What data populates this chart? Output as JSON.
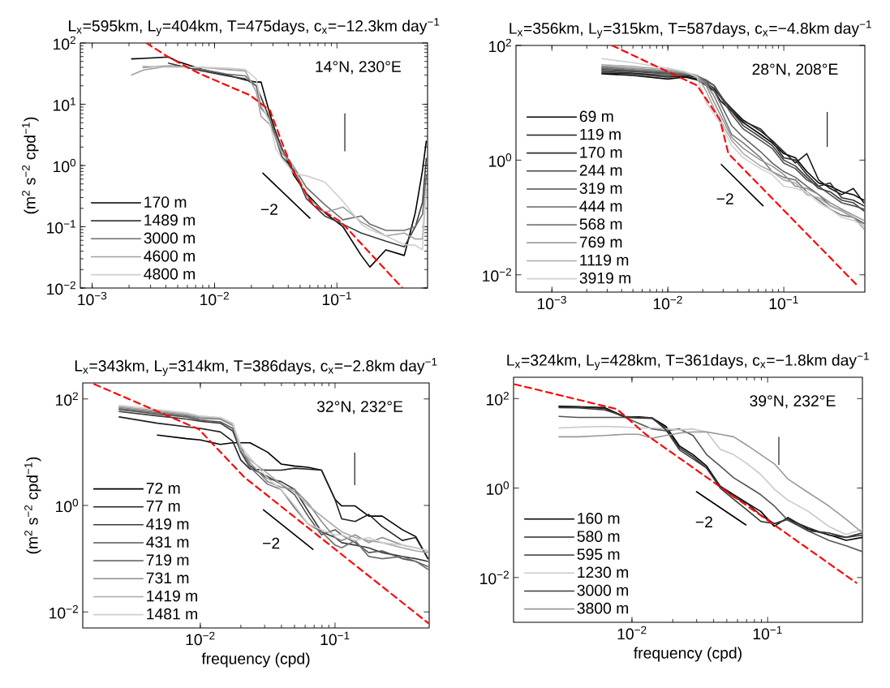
{
  "chart_data": [
    {
      "type": "line",
      "title": "L$_{x}$=595km, L$_{y}$=404km, T=475days, c$_{x}$=−12.3km day$^{−1}$",
      "ylabel": "(m$^{2}$ s$^{−2}$ cpd$^{−1}$)",
      "log": "xy",
      "legend": "bottom left",
      "marker": "none",
      "xlim": [
        0.0008,
        0.55
      ],
      "ylim": [
        0.01,
        100
      ],
      "xticks": [
        {
          "value": 0.001,
          "label": "10$^{−3}$"
        },
        {
          "value": 0.01,
          "label": "10$^{−2}$"
        },
        {
          "value": 0.1,
          "label": "10$^{−1}$"
        }
      ],
      "yticks": [
        {
          "value": 0.01,
          "label": "10$^{−2}$"
        },
        {
          "value": 0.1,
          "label": "10$^{−1}$"
        },
        {
          "value": 1,
          "label": "10$^{0}$"
        },
        {
          "value": 10,
          "label": "10$^{1}$"
        },
        {
          "value": 100,
          "label": "10$^{2}$"
        }
      ],
      "x": [
        0.0021,
        0.0026,
        0.0042,
        0.005,
        0.0079,
        0.0126,
        0.0178,
        0.0219,
        0.024,
        0.0282,
        0.0316,
        0.0355,
        0.0447,
        0.0562,
        0.0794,
        0.112,
        0.158,
        0.186,
        0.251,
        0.355,
        0.437,
        0.5,
        0.537
      ],
      "series": [
        {
          "name": "170 m",
          "color": "#000000",
          "values": [
            55,
            56,
            59,
            50,
            37,
            30,
            25,
            23,
            23,
            7.1,
            3.5,
            1.9,
            0.68,
            0.35,
            0.17,
            0.1,
            0.034,
            0.022,
            0.042,
            0.034,
            0.17,
            0.83,
            2.5
          ]
        },
        {
          "name": "1489 m",
          "color": "#3c3c3c",
          "values": [
            null,
            null,
            47,
            43,
            35,
            29,
            26,
            20,
            13,
            5.8,
            2.8,
            1.4,
            0.83,
            0.29,
            0.15,
            0.11,
            0.079,
            0.071,
            0.058,
            0.047,
            0.1,
            0.25,
            1.3
          ]
        },
        {
          "name": "3000 m",
          "color": "#6e6e6e",
          "values": [
            null,
            40,
            42,
            42,
            37,
            31,
            29,
            20,
            8.7,
            5.8,
            3.2,
            1.8,
            0.93,
            0.44,
            0.23,
            0.13,
            0.15,
            0.11,
            0.087,
            0.087,
            0.1,
            0.16,
            0.68
          ]
        },
        {
          "name": "4600 m",
          "color": "#a0a0a0",
          "values": [
            30,
            36,
            42,
            41,
            40,
            37,
            35,
            16,
            6.3,
            4.7,
            2.8,
            1.6,
            0.93,
            0.32,
            0.17,
            0.21,
            0.12,
            0.1,
            0.071,
            0.079,
            0.063,
            0.063,
            0.44
          ]
        },
        {
          "name": "4800 m",
          "color": "#cfcfcf",
          "values": [
            null,
            42,
            40,
            40,
            40,
            39,
            37,
            26,
            10,
            5.1,
            1.9,
            1.3,
            0.74,
            0.68,
            0.54,
            0.26,
            0.11,
            0.089,
            0.071,
            0.051,
            0.05,
            0.042,
            0.44
          ]
        },
        {
          "color": "#ff0000",
          "line_style": "dashed",
          "x": [
            0.00277,
            0.00413,
            0.00745,
            0.0195,
            0.0284,
            0.0352,
            0.0437,
            0.0634,
            0.108,
            0.343
          ],
          "values": [
            100,
            60,
            32,
            14,
            7.9,
            2.5,
            0.83,
            0.23,
            0.12,
            0.01
          ]
        },
        {
          "color": "#000000",
          "x": [
            0.0248,
            0.0601
          ],
          "values": [
            0.75,
            0.138
          ]
        },
        {
          "color": "#000000",
          "x": [
            0.116,
            0.116
          ],
          "values": [
            1.7,
            7.1
          ]
        }
      ],
      "annotations": [
        "14°N, 230°E",
        "−2"
      ]
    },
    {
      "type": "line",
      "title": "L$_{x}$=356km, L$_{y}$=315km, T=587days, c$_{x}$=−4.8km day$^{−1}$",
      "log": "xy",
      "legend": "bottom left",
      "marker": "none",
      "xlim": [
        0.00049,
        0.5
      ],
      "ylim": [
        0.005,
        100
      ],
      "xticks": [
        {
          "value": 0.001,
          "label": "10$^{−3}$"
        },
        {
          "value": 0.01,
          "label": "10$^{−2}$"
        },
        {
          "value": 0.1,
          "label": "10$^{−1}$"
        }
      ],
      "yticks": [
        {
          "value": 0.01,
          "label": "10$^{−2}$"
        },
        {
          "value": 1,
          "label": "10$^{0}$"
        },
        {
          "value": 100,
          "label": "10$^{2}$"
        }
      ],
      "x": [
        0.0027,
        0.005,
        0.01,
        0.0141,
        0.0178,
        0.0214,
        0.0251,
        0.0282,
        0.0355,
        0.0447,
        0.0631,
        0.0794,
        0.1,
        0.126,
        0.158,
        0.2,
        0.251,
        0.316,
        0.398,
        0.49
      ],
      "series": [
        {
          "name": "69 m",
          "color": "#000000",
          "values": [
            32,
            30,
            26,
            28,
            25,
            20,
            16,
            11,
            7.1,
            4.5,
            2.8,
            2,
            1.3,
            1.1,
            0.63,
            0.4,
            0.35,
            0.28,
            0.25,
            0.2
          ]
        },
        {
          "name": "119 m",
          "color": "#1a1a1a",
          "values": [
            33,
            32,
            28,
            29,
            26,
            21,
            17,
            13,
            7.9,
            5,
            3.2,
            2.2,
            1.4,
            0.89,
            1.3,
            0.45,
            0.32,
            0.25,
            0.32,
            0.18
          ]
        },
        {
          "name": "170 m",
          "color": "#2e2e2e",
          "values": [
            35,
            33,
            30,
            30,
            28,
            22,
            18,
            13,
            7.6,
            4.8,
            3.5,
            2.1,
            1.1,
            1,
            0.56,
            0.35,
            0.4,
            0.22,
            0.2,
            0.16
          ]
        },
        {
          "name": "244 m",
          "color": "#404040",
          "values": [
            37,
            35,
            32,
            32,
            28,
            24,
            20,
            14,
            7.1,
            4,
            2.5,
            1.8,
            1,
            0.79,
            0.5,
            0.32,
            0.28,
            0.2,
            0.18,
            0.13
          ]
        },
        {
          "name": "319 m",
          "color": "#4f4f4f",
          "values": [
            38,
            36,
            33,
            32,
            29,
            25,
            20,
            13,
            6.3,
            3.5,
            2.2,
            1.6,
            0.89,
            0.71,
            0.45,
            0.35,
            0.25,
            0.18,
            0.16,
            0.14
          ]
        },
        {
          "name": "444 m",
          "color": "#646464",
          "values": [
            40,
            37,
            34,
            32,
            30,
            24,
            16,
            10,
            4,
            2.5,
            1.4,
            0.89,
            0.63,
            0.5,
            0.35,
            0.25,
            0.16,
            0.13,
            0.1,
            0.079
          ]
        },
        {
          "name": "568 m",
          "color": "#7a7a7a",
          "values": [
            42,
            38,
            35,
            33,
            30,
            22,
            13,
            7.9,
            2.8,
            2,
            1.1,
            0.63,
            0.5,
            0.45,
            0.28,
            0.2,
            0.14,
            0.11,
            0.1,
            0.071
          ]
        },
        {
          "name": "769 m",
          "color": "#929292",
          "values": [
            44,
            40,
            36,
            33,
            30,
            20,
            10,
            6.3,
            2.5,
            1.6,
            1,
            0.79,
            0.56,
            0.35,
            0.32,
            0.25,
            0.18,
            0.14,
            0.11,
            0.089
          ]
        },
        {
          "name": "1119 m",
          "color": "#ababab",
          "values": [
            46,
            43,
            38,
            34,
            30,
            16,
            7.9,
            5,
            2.2,
            1.3,
            0.79,
            0.63,
            0.45,
            0.4,
            0.25,
            0.22,
            0.16,
            0.13,
            0.1,
            0.063
          ]
        },
        {
          "name": "3919 m",
          "color": "#d0d0d0",
          "values": [
            59,
            50,
            40,
            35,
            28,
            10,
            6.3,
            4.5,
            1.8,
            1.1,
            0.71,
            0.56,
            0.35,
            0.32,
            0.28,
            0.18,
            0.14,
            0.1,
            0.089,
            0.071
          ]
        },
        {
          "color": "#ff0000",
          "line_style": "dashed",
          "x": [
            0.0033,
            0.0179,
            0.0281,
            0.0333,
            0.422
          ],
          "values": [
            100,
            20,
            5.1,
            1.3,
            0.0068
          ]
        },
        {
          "color": "#000000",
          "x": [
            0.0289,
            0.0662
          ],
          "values": [
            0.84,
            0.16
          ]
        },
        {
          "color": "#000000",
          "x": [
            0.237,
            0.237
          ],
          "values": [
            1.7,
            6.9
          ]
        }
      ],
      "annotations": [
        "28°N, 208°E",
        "−2"
      ]
    },
    {
      "type": "line",
      "title": "L$_{x}$=343km, L$_{y}$=314km, T=386days, c$_{x}$=−2.8km day$^{−1}$",
      "xlabel": "frequency (cpd)",
      "ylabel": "(m$^{2}$ s$^{−2}$ cpd$^{−1}$)",
      "log": "xy",
      "legend": "bottom left",
      "marker": "none",
      "xlim": [
        0.00134,
        0.5
      ],
      "ylim": [
        0.005,
        200
      ],
      "xticks": [
        {
          "value": 0.01,
          "label": "10$^{−2}$"
        },
        {
          "value": 0.1,
          "label": "10$^{−1}$"
        }
      ],
      "yticks": [
        {
          "value": 0.01,
          "label": "10$^{−2}$"
        },
        {
          "value": 1,
          "label": "10$^{0}$"
        },
        {
          "value": 100,
          "label": "10$^{2}$"
        }
      ],
      "x": [
        0.0025,
        0.0048,
        0.0079,
        0.01,
        0.0141,
        0.0174,
        0.02,
        0.0234,
        0.0316,
        0.0398,
        0.0501,
        0.0631,
        0.0794,
        0.1,
        0.112,
        0.141,
        0.178,
        0.224,
        0.316,
        0.398,
        0.49
      ],
      "series": [
        {
          "name": "72 m",
          "color": "#000000",
          "values": [
            null,
            21,
            18,
            17,
            14,
            15,
            15,
            15,
            10,
            6,
            5.5,
            5.2,
            4.6,
            1.3,
            0.98,
            0.98,
            0.63,
            0.63,
            0.35,
            0.26,
            0.1
          ]
        },
        {
          "name": "77 m",
          "color": "#202020",
          "values": [
            46,
            35,
            30,
            28,
            24,
            16,
            7.1,
            4.8,
            4.6,
            4.6,
            5,
            4.8,
            4.6,
            1.3,
            0.56,
            0.5,
            0.68,
            0.4,
            0.22,
            0.25,
            0.1
          ]
        },
        {
          "name": "419 m",
          "color": "#3a3a3a",
          "values": [
            58,
            48,
            42,
            38,
            35,
            25,
            10,
            5.6,
            3.2,
            2.8,
            2,
            0.79,
            0.32,
            0.25,
            0.2,
            0.18,
            0.16,
            0.13,
            0.11,
            0.1,
            0.089
          ]
        },
        {
          "name": "431 m",
          "color": "#555555",
          "values": [
            63,
            52,
            46,
            40,
            37,
            28,
            10,
            5,
            3.5,
            2.5,
            1.6,
            0.63,
            0.28,
            0.35,
            0.28,
            0.2,
            0.13,
            0.14,
            0.1,
            0.089,
            0.071
          ]
        },
        {
          "name": "719 m",
          "color": "#707070",
          "values": [
            66,
            55,
            48,
            43,
            42,
            32,
            13,
            5.2,
            2.5,
            2,
            0.9,
            0.45,
            0.32,
            0.18,
            0.16,
            0.22,
            0.11,
            0.1,
            0.11,
            0.089,
            0.063
          ]
        },
        {
          "name": "731 m",
          "color": "#8c8c8c",
          "values": [
            69,
            58,
            50,
            44,
            43,
            35,
            11,
            6.3,
            2.8,
            2.2,
            2,
            1.1,
            0.5,
            0.25,
            0.22,
            0.28,
            0.2,
            0.25,
            0.18,
            0.16,
            0.14
          ]
        },
        {
          "name": "1419 m",
          "color": "#a8a8a8",
          "values": [
            72,
            60,
            52,
            46,
            44,
            33,
            11,
            7.1,
            4,
            2.5,
            1.8,
            1,
            0.63,
            0.4,
            0.32,
            0.25,
            0.22,
            0.2,
            0.16,
            0.14,
            0.13
          ]
        },
        {
          "name": "1481 m",
          "color": "#d0d0d0",
          "values": [
            76,
            63,
            55,
            48,
            45,
            35,
            13,
            7.9,
            3.2,
            2,
            1,
            0.45,
            0.35,
            0.28,
            0.28,
            0.22,
            0.25,
            0.2,
            0.18,
            0.16,
            0.14
          ]
        },
        {
          "color": "#ff0000",
          "line_style": "dashed",
          "x": [
            0.00163,
            0.00975,
            0.0212,
            0.491
          ],
          "values": [
            190,
            27,
            3.4,
            0.0062
          ]
        },
        {
          "color": "#000000",
          "x": [
            0.0294,
            0.0686
          ],
          "values": [
            0.83,
            0.15
          ]
        },
        {
          "color": "#000000",
          "x": [
            0.14,
            0.14
          ],
          "values": [
            2.4,
            9.9
          ]
        }
      ],
      "annotations": [
        "32°N, 232°E",
        "−2"
      ]
    },
    {
      "type": "line",
      "title": "L$_{x}$=324km, L$_{y}$=428km, T=361days, c$_{x}$=−1.8km day$^{−1}$",
      "xlabel": "frequency (cpd)",
      "log": "xy",
      "legend": "bottom left",
      "marker": "none",
      "xlim": [
        0.00134,
        0.5
      ],
      "ylim": [
        0.001,
        300
      ],
      "xticks": [
        {
          "value": 0.01,
          "label": "10$^{−2}$"
        },
        {
          "value": 0.1,
          "label": "10$^{−1}$"
        }
      ],
      "yticks": [
        {
          "value": 0.01,
          "label": "10$^{−2}$"
        },
        {
          "value": 1,
          "label": "10$^{0}$"
        },
        {
          "value": 100,
          "label": "10$^{2}$"
        }
      ],
      "x": [
        0.0029,
        0.004,
        0.0063,
        0.0089,
        0.0112,
        0.0141,
        0.0178,
        0.0224,
        0.0282,
        0.0355,
        0.0447,
        0.0562,
        0.0708,
        0.0891,
        0.112,
        0.141,
        0.2,
        0.282,
        0.38,
        0.5
      ],
      "series": [
        {
          "name": "160 m",
          "color": "#000000",
          "values": [
            68,
            66,
            63,
            39,
            39,
            37,
            24,
            8.7,
            5.6,
            3.1,
            1.1,
            0.71,
            0.46,
            0.3,
            0.14,
            0.22,
            0.12,
            0.091,
            0.068,
            0.079
          ]
        },
        {
          "name": "580 m",
          "color": "#2a2a2a",
          "values": [
            66,
            65,
            60,
            38,
            37,
            36,
            22,
            7.9,
            5,
            2.8,
            1.1,
            0.63,
            0.45,
            0.25,
            0.16,
            0.2,
            0.13,
            0.089,
            0.079,
            0.1
          ]
        },
        {
          "name": "595 m",
          "color": "#555555",
          "values": [
            40,
            38,
            38,
            38,
            28,
            21,
            19,
            21,
            15,
            5.6,
            3.1,
            1.7,
            1.1,
            0.71,
            0.4,
            0.19,
            0.11,
            0.068,
            0.051,
            0.038
          ]
        },
        {
          "name": "1230 m",
          "color": "#c8c8c8",
          "values": [
            22,
            23,
            24,
            23,
            22,
            22,
            21,
            20,
            21,
            18,
            7.4,
            5.6,
            3.5,
            2,
            0.95,
            0.54,
            0.3,
            0.14,
            0.091,
            0.12
          ]
        },
        {
          "name": "3000 m",
          "color": "#3a3a3a",
          "values": [
            63,
            62,
            56,
            40,
            38,
            37,
            20,
            7.1,
            4.5,
            2.8,
            1,
            0.56,
            0.32,
            0.18,
            0.16,
            0.2,
            0.11,
            0.1,
            0.079,
            0.089
          ]
        },
        {
          "name": "3800 m",
          "color": "#999999",
          "values": [
            14,
            14,
            15,
            16,
            16,
            13,
            15,
            17,
            18,
            18,
            16,
            14,
            9,
            5.6,
            3.5,
            1.6,
            0.79,
            0.4,
            0.2,
            0.1
          ]
        },
        {
          "color": "#ff0000",
          "line_style": "dashed",
          "x": [
            0.00136,
            0.00778,
            0.0126,
            0.452
          ],
          "values": [
            210,
            58,
            16,
            0.0076
          ]
        },
        {
          "color": "#000000",
          "x": [
            0.0299,
            0.0692
          ],
          "values": [
            0.83,
            0.15
          ]
        },
        {
          "color": "#000000",
          "x": [
            0.121,
            0.121
          ],
          "values": [
            3.3,
            14
          ]
        }
      ],
      "annotations": [
        "39°N, 232°E",
        "−2"
      ]
    }
  ]
}
